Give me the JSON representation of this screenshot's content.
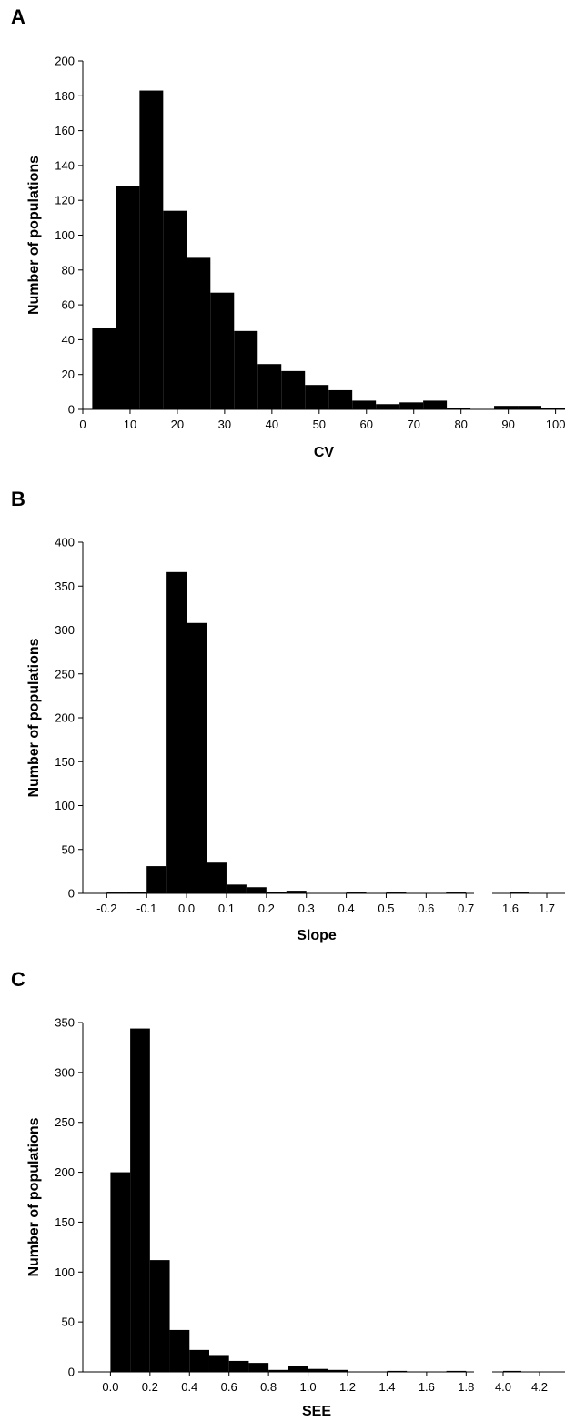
{
  "chart_data": [
    {
      "panel": "A",
      "type": "bar",
      "xlabel": "CV",
      "ylabel": "Number of populations",
      "ylim": [
        0,
        200
      ],
      "yticks": [
        "0",
        "20",
        "40",
        "60",
        "80",
        "100",
        "120",
        "140",
        "160",
        "180",
        "200"
      ],
      "xlim": [
        0,
        102
      ],
      "xticks": [
        "0",
        "10",
        "20",
        "30",
        "40",
        "50",
        "60",
        "70",
        "80",
        "90",
        "100"
      ],
      "bin_width": 5,
      "bins": [
        {
          "x0": 2,
          "x1": 7,
          "value": 47
        },
        {
          "x0": 7,
          "x1": 12,
          "value": 128
        },
        {
          "x0": 12,
          "x1": 17,
          "value": 183
        },
        {
          "x0": 17,
          "x1": 22,
          "value": 114
        },
        {
          "x0": 22,
          "x1": 27,
          "value": 87
        },
        {
          "x0": 27,
          "x1": 32,
          "value": 67
        },
        {
          "x0": 32,
          "x1": 37,
          "value": 45
        },
        {
          "x0": 37,
          "x1": 42,
          "value": 26
        },
        {
          "x0": 42,
          "x1": 47,
          "value": 22
        },
        {
          "x0": 47,
          "x1": 52,
          "value": 14
        },
        {
          "x0": 52,
          "x1": 57,
          "value": 11
        },
        {
          "x0": 57,
          "x1": 62,
          "value": 5
        },
        {
          "x0": 62,
          "x1": 67,
          "value": 3
        },
        {
          "x0": 67,
          "x1": 72,
          "value": 4
        },
        {
          "x0": 72,
          "x1": 77,
          "value": 5
        },
        {
          "x0": 77,
          "x1": 82,
          "value": 1
        },
        {
          "x0": 82,
          "x1": 87,
          "value": 0
        },
        {
          "x0": 87,
          "x1": 92,
          "value": 2
        },
        {
          "x0": 92,
          "x1": 97,
          "value": 2
        },
        {
          "x0": 97,
          "x1": 102,
          "value": 1
        }
      ]
    },
    {
      "panel": "B",
      "type": "bar",
      "xlabel": "Slope",
      "ylabel": "Number of populations",
      "ylim": [
        0,
        400
      ],
      "yticks": [
        "0",
        "50",
        "100",
        "150",
        "200",
        "250",
        "300",
        "350",
        "400"
      ],
      "broken_x_axis": true,
      "segments": [
        {
          "xlim": [
            -0.26,
            0.72
          ],
          "xticks": [
            "-0.2",
            "-0.1",
            "0.0",
            "0.1",
            "0.2",
            "0.3",
            "0.4",
            "0.5",
            "0.6",
            "0.7"
          ],
          "bins": [
            {
              "x0": -0.2,
              "x1": -0.15,
              "value": 1
            },
            {
              "x0": -0.15,
              "x1": -0.1,
              "value": 2
            },
            {
              "x0": -0.1,
              "x1": -0.05,
              "value": 31
            },
            {
              "x0": -0.05,
              "x1": 0.0,
              "value": 366
            },
            {
              "x0": 0.0,
              "x1": 0.05,
              "value": 308
            },
            {
              "x0": 0.05,
              "x1": 0.1,
              "value": 35
            },
            {
              "x0": 0.1,
              "x1": 0.15,
              "value": 10
            },
            {
              "x0": 0.15,
              "x1": 0.2,
              "value": 7
            },
            {
              "x0": 0.2,
              "x1": 0.25,
              "value": 2
            },
            {
              "x0": 0.25,
              "x1": 0.3,
              "value": 3
            },
            {
              "x0": 0.3,
              "x1": 0.35,
              "value": 0
            },
            {
              "x0": 0.35,
              "x1": 0.4,
              "value": 0
            },
            {
              "x0": 0.4,
              "x1": 0.45,
              "value": 1
            },
            {
              "x0": 0.45,
              "x1": 0.5,
              "value": 0
            },
            {
              "x0": 0.5,
              "x1": 0.55,
              "value": 1
            },
            {
              "x0": 0.55,
              "x1": 0.6,
              "value": 0
            },
            {
              "x0": 0.6,
              "x1": 0.65,
              "value": 0
            },
            {
              "x0": 0.65,
              "x1": 0.7,
              "value": 1
            }
          ]
        },
        {
          "xlim": [
            1.55,
            1.75
          ],
          "xticks": [
            "1.6",
            "1.7"
          ],
          "bins": [
            {
              "x0": 1.6,
              "x1": 1.65,
              "value": 1
            }
          ]
        }
      ]
    },
    {
      "panel": "C",
      "type": "bar",
      "xlabel": "SEE",
      "ylabel": "Number of populations",
      "ylim": [
        0,
        350
      ],
      "yticks": [
        "0",
        "50",
        "100",
        "150",
        "200",
        "250",
        "300",
        "350"
      ],
      "broken_x_axis": true,
      "segments": [
        {
          "xlim": [
            -0.14,
            1.84
          ],
          "xticks": [
            "0.0",
            "0.2",
            "0.4",
            "0.6",
            "0.8",
            "1.0",
            "1.2",
            "1.4",
            "1.6",
            "1.8"
          ],
          "bins": [
            {
              "x0": 0.0,
              "x1": 0.1,
              "value": 200
            },
            {
              "x0": 0.1,
              "x1": 0.2,
              "value": 344
            },
            {
              "x0": 0.2,
              "x1": 0.3,
              "value": 112
            },
            {
              "x0": 0.3,
              "x1": 0.4,
              "value": 42
            },
            {
              "x0": 0.4,
              "x1": 0.5,
              "value": 22
            },
            {
              "x0": 0.5,
              "x1": 0.6,
              "value": 16
            },
            {
              "x0": 0.6,
              "x1": 0.7,
              "value": 11
            },
            {
              "x0": 0.7,
              "x1": 0.8,
              "value": 9
            },
            {
              "x0": 0.8,
              "x1": 0.9,
              "value": 2
            },
            {
              "x0": 0.9,
              "x1": 1.0,
              "value": 6
            },
            {
              "x0": 1.0,
              "x1": 1.1,
              "value": 3
            },
            {
              "x0": 1.1,
              "x1": 1.2,
              "value": 2
            },
            {
              "x0": 1.2,
              "x1": 1.3,
              "value": 0
            },
            {
              "x0": 1.3,
              "x1": 1.4,
              "value": 0
            },
            {
              "x0": 1.4,
              "x1": 1.5,
              "value": 1
            },
            {
              "x0": 1.5,
              "x1": 1.6,
              "value": 0
            },
            {
              "x0": 1.6,
              "x1": 1.7,
              "value": 0
            },
            {
              "x0": 1.7,
              "x1": 1.8,
              "value": 1
            }
          ]
        },
        {
          "xlim": [
            3.94,
            4.34
          ],
          "xticks": [
            "4.0",
            "4.2"
          ],
          "bins": [
            {
              "x0": 4.0,
              "x1": 4.1,
              "value": 1
            }
          ]
        }
      ]
    }
  ]
}
